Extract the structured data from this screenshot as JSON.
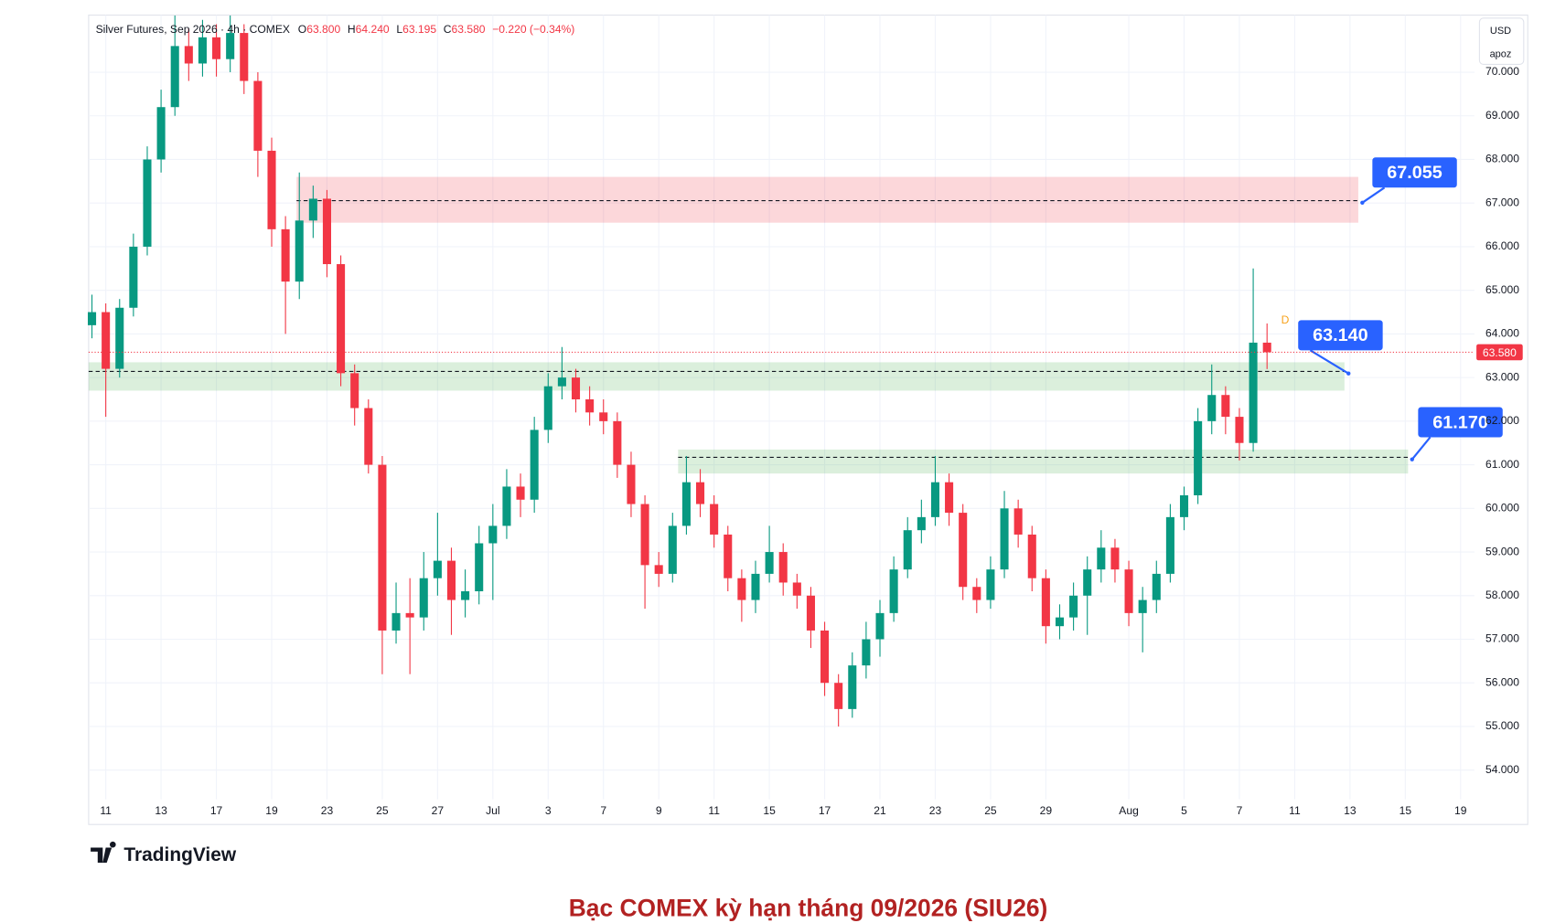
{
  "chart_data": {
    "type": "candlestick",
    "title": "Silver Futures, Sep 2026 · 4h · COMEX",
    "ohlc": [
      "O",
      "63.800",
      "H",
      "64.240",
      "L",
      "63.195",
      "C",
      "63.580",
      "−0.220 (−0.34%)"
    ],
    "currency": "USD",
    "scale_mode": "apoz",
    "marker": "D",
    "brand": "TradingView",
    "caption": "Bạc COMEX kỳ hạn tháng 09/2026 (SIU26)",
    "up_color": "#089981",
    "down_color": "#f23645",
    "grid": true,
    "ylim": [
      53.33,
      71.31
    ],
    "yticks": [
      {
        "value": 54,
        "label": "54.000"
      },
      {
        "value": 55,
        "label": "55.000"
      },
      {
        "value": 56,
        "label": "56.000"
      },
      {
        "value": 57,
        "label": "57.000"
      },
      {
        "value": 58,
        "label": "58.000"
      },
      {
        "value": 59,
        "label": "59.000"
      },
      {
        "value": 60,
        "label": "60.000"
      },
      {
        "value": 61,
        "label": "61.000"
      },
      {
        "value": 62,
        "label": "62.000"
      },
      {
        "value": 63,
        "label": "63.000"
      },
      {
        "value": 64,
        "label": "64.000"
      },
      {
        "value": 65,
        "label": "65.000"
      },
      {
        "value": 66,
        "label": "66.000"
      },
      {
        "value": 67,
        "label": "67.000"
      },
      {
        "value": 68,
        "label": "68.000"
      },
      {
        "value": 69,
        "label": "69.000"
      },
      {
        "value": 70,
        "label": "70.000"
      }
    ],
    "xlim": [
      -0.62,
      49.5
    ],
    "xticks": [
      {
        "value": 0,
        "label": "11"
      },
      {
        "value": 2,
        "label": "13"
      },
      {
        "value": 4,
        "label": "17"
      },
      {
        "value": 6,
        "label": "19"
      },
      {
        "value": 8,
        "label": "23"
      },
      {
        "value": 10,
        "label": "25"
      },
      {
        "value": 12,
        "label": "27"
      },
      {
        "value": 14,
        "label": "Jul"
      },
      {
        "value": 16,
        "label": "3"
      },
      {
        "value": 18,
        "label": "7"
      },
      {
        "value": 20,
        "label": "9"
      },
      {
        "value": 22,
        "label": "11"
      },
      {
        "value": 24,
        "label": "15"
      },
      {
        "value": 26,
        "label": "17"
      },
      {
        "value": 28,
        "label": "21"
      },
      {
        "value": 30,
        "label": "23"
      },
      {
        "value": 32,
        "label": "25"
      },
      {
        "value": 34,
        "label": "29"
      },
      {
        "value": 37,
        "label": "Aug"
      },
      {
        "value": 39,
        "label": "5"
      },
      {
        "value": 41,
        "label": "7"
      },
      {
        "value": 43,
        "label": "11"
      },
      {
        "value": 45,
        "label": "13"
      },
      {
        "value": 47,
        "label": "15"
      },
      {
        "value": 49,
        "label": "19"
      }
    ],
    "x": [
      -0.5,
      0,
      0.5,
      1,
      1.5,
      2,
      2.5,
      3,
      3.5,
      4,
      4.5,
      5,
      5.5,
      6,
      6.5,
      7,
      7.5,
      8,
      8.5,
      9,
      9.5,
      10,
      10.5,
      11,
      11.5,
      12,
      12.5,
      13,
      13.5,
      14,
      14.5,
      15,
      15.5,
      16,
      16.5,
      17,
      17.5,
      18,
      18.5,
      19,
      19.5,
      20,
      20.5,
      21,
      21.5,
      22,
      22.5,
      23,
      23.5,
      24,
      24.5,
      25,
      25.5,
      26,
      26.5,
      27,
      27.5,
      28,
      28.5,
      29,
      29.5,
      30,
      30.5,
      31,
      31.5,
      32,
      32.5,
      33,
      33.5,
      34,
      34.5,
      35,
      35.5,
      36,
      36.5,
      37,
      37.5,
      38,
      38.5,
      39,
      39.5,
      40,
      40.5,
      41,
      41.5,
      42
    ],
    "open": [
      64.2,
      64.5,
      63.2,
      64.6,
      66.0,
      68.0,
      69.2,
      70.6,
      70.2,
      70.8,
      70.3,
      70.9,
      69.8,
      68.2,
      66.4,
      65.2,
      66.6,
      67.1,
      65.6,
      63.1,
      62.3,
      61.0,
      57.2,
      57.6,
      57.5,
      58.4,
      58.8,
      57.9,
      58.1,
      59.2,
      59.6,
      60.5,
      60.2,
      61.8,
      62.8,
      63.0,
      62.5,
      62.2,
      62.0,
      61.0,
      60.1,
      58.7,
      58.5,
      59.6,
      60.6,
      60.1,
      59.4,
      58.4,
      57.9,
      58.5,
      59.0,
      58.3,
      58.0,
      57.2,
      56.0,
      55.4,
      56.4,
      57.0,
      57.6,
      58.6,
      59.5,
      59.8,
      60.6,
      59.9,
      58.2,
      57.9,
      58.6,
      60.0,
      59.4,
      58.4,
      57.3,
      57.5,
      58.0,
      58.6,
      59.1,
      58.6,
      57.6,
      57.9,
      58.5,
      59.8,
      60.3,
      62.0,
      62.6,
      62.1,
      61.5,
      63.8
    ],
    "high": [
      64.9,
      64.7,
      64.8,
      66.3,
      68.3,
      69.6,
      71.3,
      71.0,
      71.2,
      71.1,
      71.3,
      71.1,
      70.0,
      68.5,
      66.7,
      67.7,
      67.4,
      67.3,
      65.8,
      63.3,
      62.5,
      61.2,
      58.3,
      58.4,
      59.0,
      59.9,
      59.1,
      58.6,
      59.6,
      60.1,
      60.9,
      60.8,
      62.1,
      63.1,
      63.7,
      63.2,
      62.8,
      62.5,
      62.2,
      61.3,
      60.3,
      59.0,
      59.9,
      61.2,
      60.9,
      60.3,
      59.6,
      58.6,
      58.8,
      59.6,
      59.2,
      58.5,
      58.2,
      57.4,
      56.2,
      56.7,
      57.4,
      57.9,
      58.9,
      59.8,
      60.2,
      61.2,
      60.8,
      60.1,
      58.4,
      58.9,
      60.4,
      60.2,
      59.6,
      58.6,
      57.8,
      58.3,
      58.9,
      59.5,
      59.3,
      58.8,
      58.2,
      58.8,
      60.1,
      60.5,
      62.3,
      63.3,
      62.8,
      62.3,
      65.5,
      64.24
    ],
    "low": [
      63.9,
      62.1,
      63.0,
      64.4,
      65.8,
      67.7,
      69.0,
      69.8,
      69.9,
      69.9,
      70.0,
      69.5,
      67.6,
      66.0,
      64.0,
      64.8,
      66.2,
      65.3,
      62.8,
      61.9,
      60.8,
      56.2,
      56.9,
      56.2,
      57.2,
      58.0,
      57.1,
      57.5,
      57.8,
      57.9,
      59.3,
      59.8,
      59.9,
      61.5,
      62.5,
      62.2,
      61.9,
      61.7,
      60.7,
      59.8,
      57.7,
      58.2,
      58.3,
      59.4,
      59.8,
      59.1,
      58.1,
      57.4,
      57.6,
      58.3,
      58.0,
      57.7,
      56.8,
      55.7,
      55.0,
      55.2,
      56.1,
      56.6,
      57.4,
      58.4,
      59.2,
      59.6,
      59.6,
      57.9,
      57.6,
      57.7,
      58.4,
      59.1,
      58.1,
      56.9,
      57.0,
      57.2,
      57.1,
      58.3,
      58.3,
      57.3,
      56.7,
      57.6,
      58.3,
      59.5,
      60.1,
      61.7,
      61.7,
      61.1,
      61.3,
      63.195
    ],
    "close": [
      64.5,
      63.2,
      64.6,
      66.0,
      68.0,
      69.2,
      70.6,
      70.2,
      70.8,
      70.3,
      70.9,
      69.8,
      68.2,
      66.4,
      65.2,
      66.6,
      67.1,
      65.6,
      63.1,
      62.3,
      61.0,
      57.2,
      57.6,
      57.5,
      58.4,
      58.8,
      57.9,
      58.1,
      59.2,
      59.6,
      60.5,
      60.2,
      61.8,
      62.8,
      63.0,
      62.5,
      62.2,
      62.0,
      61.0,
      60.1,
      58.7,
      58.5,
      59.6,
      60.6,
      60.1,
      59.4,
      58.4,
      57.9,
      58.5,
      59.0,
      58.3,
      58.0,
      57.2,
      56.0,
      55.4,
      56.4,
      57.0,
      57.6,
      58.6,
      59.5,
      59.8,
      60.6,
      59.9,
      58.2,
      57.9,
      58.6,
      60.0,
      59.4,
      58.4,
      57.3,
      57.5,
      58.0,
      58.6,
      59.1,
      58.6,
      57.6,
      57.9,
      58.5,
      59.8,
      60.3,
      62.0,
      62.6,
      62.1,
      61.5,
      63.8,
      63.58
    ],
    "last_price": {
      "value": 63.58,
      "label": "63.580"
    },
    "zones": [
      {
        "level": 67.055,
        "label": "67.055",
        "low": 66.55,
        "high": 67.6,
        "x": [
          6.9,
          45.3
        ],
        "color": "#f23645"
      },
      {
        "level": 63.14,
        "label": "63.140",
        "low": 62.7,
        "high": 63.35,
        "x": [
          -0.62,
          44.8
        ],
        "color": "#4caf50"
      },
      {
        "level": 61.17,
        "label": "61.170",
        "low": 60.8,
        "high": 61.35,
        "x": [
          20.7,
          47.1
        ],
        "color": "#4caf50"
      }
    ]
  }
}
